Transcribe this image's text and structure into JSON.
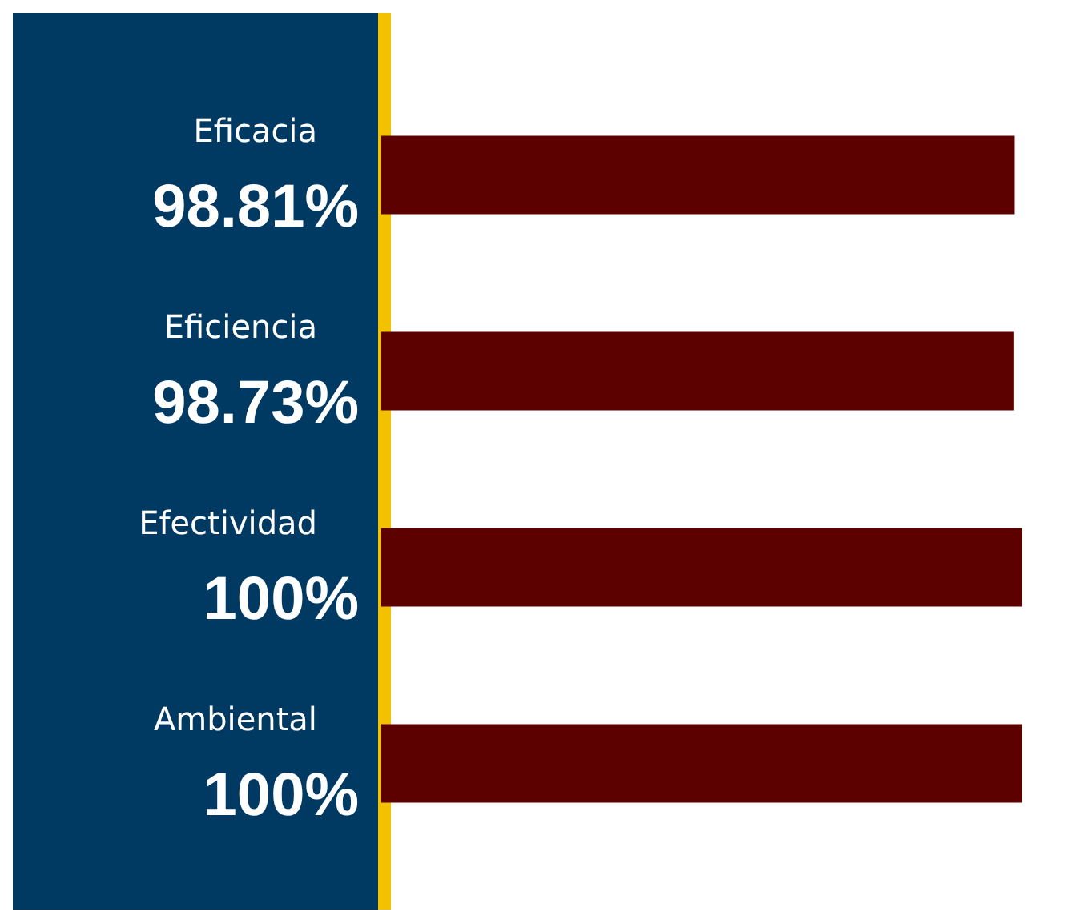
{
  "chart_data": {
    "type": "bar",
    "orientation": "horizontal",
    "categories": [
      "Eficacia",
      "Eficiencia",
      "Efectividad",
      "Ambiental"
    ],
    "values": [
      98.81,
      98.73,
      100,
      100
    ],
    "value_labels": [
      "98.81%",
      "98.73%",
      "100%",
      "100%"
    ],
    "color": "#5c0000"
  }
}
